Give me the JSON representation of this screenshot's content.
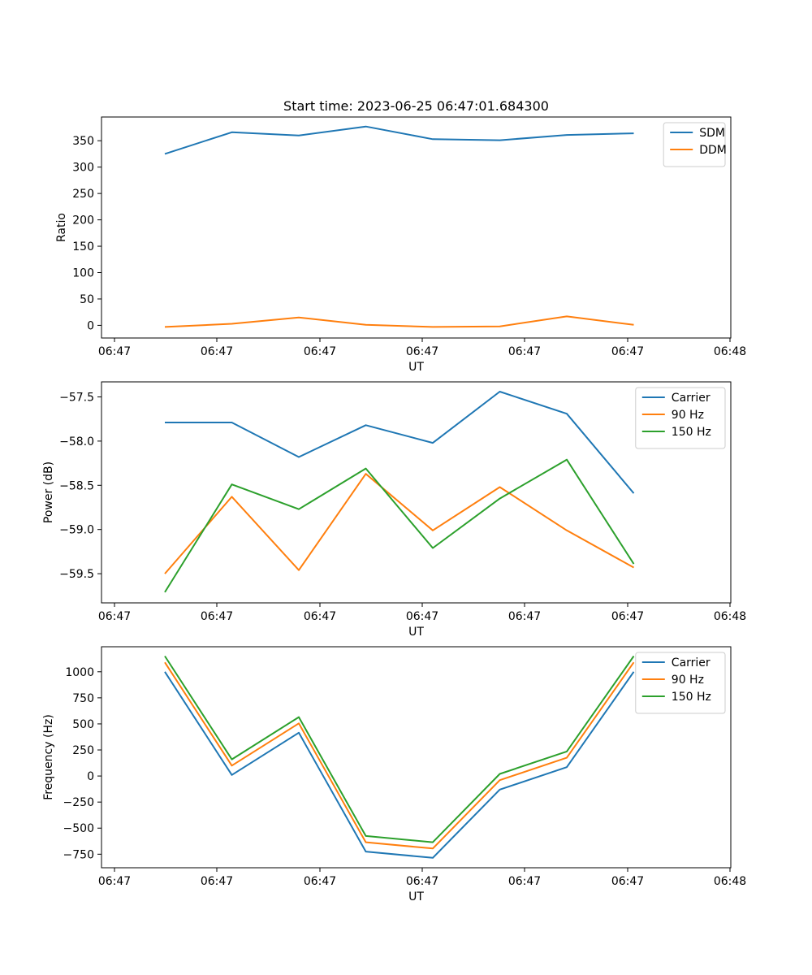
{
  "chart_data": [
    {
      "type": "line",
      "title": "Start time: 2023-06-25 06:47:01.684300",
      "xlabel": "UT",
      "ylabel": "Ratio",
      "x_tick_labels": [
        "06:47",
        "06:47",
        "06:47",
        "06:47",
        "06:47",
        "06:47",
        "06:48"
      ],
      "y_ticks": [
        0,
        50,
        100,
        150,
        200,
        250,
        300,
        350
      ],
      "ylim": [
        -24,
        395
      ],
      "legend_position": "top-right",
      "grid": false,
      "series": [
        {
          "name": "SDM",
          "color": "#1f77b4",
          "values": [
            325,
            366,
            360,
            377,
            353,
            351,
            361,
            364
          ]
        },
        {
          "name": "DDM",
          "color": "#ff7f0e",
          "values": [
            -3,
            3,
            15,
            1,
            -3,
            -2,
            17,
            1
          ]
        }
      ]
    },
    {
      "type": "line",
      "title": "",
      "xlabel": "UT",
      "ylabel": "Power (dB)",
      "x_tick_labels": [
        "06:47",
        "06:47",
        "06:47",
        "06:47",
        "06:47",
        "06:47",
        "06:48"
      ],
      "y_ticks": [
        -59.5,
        -59.0,
        -58.5,
        -58.0,
        -57.5
      ],
      "y_tick_labels": [
        "−59.5",
        "−59.0",
        "−58.5",
        "−58.0",
        "−57.5"
      ],
      "ylim": [
        -59.83,
        -57.33
      ],
      "legend_position": "top-right",
      "grid": false,
      "series": [
        {
          "name": "Carrier",
          "color": "#1f77b4",
          "values": [
            -57.79,
            -57.79,
            -58.18,
            -57.82,
            -58.02,
            -57.44,
            -57.69,
            -58.59
          ]
        },
        {
          "name": "90 Hz",
          "color": "#ff7f0e",
          "values": [
            -59.5,
            -58.63,
            -59.46,
            -58.37,
            -59.01,
            -58.52,
            -59.01,
            -59.43
          ]
        },
        {
          "name": "150 Hz",
          "color": "#2ca02c",
          "values": [
            -59.71,
            -58.49,
            -58.77,
            -58.31,
            -59.21,
            -58.65,
            -58.21,
            -59.39
          ]
        }
      ]
    },
    {
      "type": "line",
      "title": "",
      "xlabel": "UT",
      "ylabel": "Frequency (Hz)",
      "x_tick_labels": [
        "06:47",
        "06:47",
        "06:47",
        "06:47",
        "06:47",
        "06:47",
        "06:48"
      ],
      "y_ticks": [
        -750,
        -500,
        -250,
        0,
        250,
        500,
        750,
        1000
      ],
      "y_tick_labels": [
        "−750",
        "−500",
        "−250",
        "0",
        "250",
        "500",
        "750",
        "1000"
      ],
      "ylim": [
        -880,
        1240
      ],
      "legend_position": "top-right",
      "grid": false,
      "series": [
        {
          "name": "Carrier",
          "color": "#1f77b4",
          "values": [
            1000,
            10,
            415,
            -725,
            -785,
            -130,
            85,
            1000
          ]
        },
        {
          "name": "90 Hz",
          "color": "#ff7f0e",
          "values": [
            1090,
            100,
            505,
            -635,
            -695,
            -40,
            175,
            1090
          ]
        },
        {
          "name": "150 Hz",
          "color": "#2ca02c",
          "values": [
            1150,
            160,
            565,
            -575,
            -635,
            20,
            235,
            1150
          ]
        }
      ]
    }
  ]
}
